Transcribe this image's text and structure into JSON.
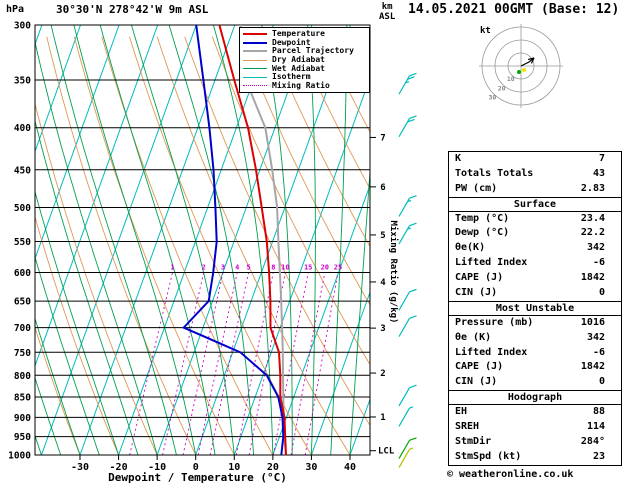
{
  "header": {
    "pressure_unit": "hPa",
    "station": "30°30'N 278°42'W 9m ASL",
    "datetime": "14.05.2021 00GMT (Base: 12)",
    "alt_unit_line1": "km",
    "alt_unit_line2": "ASL",
    "copyright": "© weatheronline.co.uk"
  },
  "legend": [
    {
      "label": "Temperature",
      "color": "#dd0000",
      "style": "thick"
    },
    {
      "label": "Dewpoint",
      "color": "#0000cc",
      "style": "thick"
    },
    {
      "label": "Parcel Trajectory",
      "color": "#a6a6a6",
      "style": "thick"
    },
    {
      "label": "Dry Adiabat",
      "color": "#dd9955",
      "style": "thin"
    },
    {
      "label": "Wet Adiabat",
      "color": "#00a050",
      "style": "thin"
    },
    {
      "label": "Isotherm",
      "color": "#00bbbb",
      "style": "thin"
    },
    {
      "label": "Mixing Ratio",
      "color": "#cc00cc",
      "style": "dotted"
    }
  ],
  "axes": {
    "xlabel": "Dewpoint / Temperature (°C)",
    "mixing_ratio_label": "Mixing Ratio (g/kg)",
    "lcl_label": "LCL",
    "lcl_pressure": 988,
    "pressure_levels": [
      300,
      350,
      400,
      450,
      500,
      550,
      600,
      650,
      700,
      750,
      800,
      850,
      900,
      950,
      1000
    ],
    "temp_ticks": [
      -30,
      -20,
      -10,
      0,
      10,
      20,
      30,
      40
    ],
    "mixing_ratio_values": [
      1,
      2,
      3,
      4,
      5,
      8,
      10,
      15,
      20,
      25
    ],
    "km_levels": [
      {
        "km": 7,
        "p": 411
      },
      {
        "km": 6,
        "p": 472
      },
      {
        "km": 5,
        "p": 540
      },
      {
        "km": 4,
        "p": 616
      },
      {
        "km": 3,
        "p": 701
      },
      {
        "km": 2,
        "p": 795
      },
      {
        "km": 1,
        "p": 899
      }
    ]
  },
  "chart_data": {
    "type": "skewt_log_p_sounding",
    "title": "30°30'N 278°42'W 9m ASL",
    "valid": "14.05.2021 00GMT (Base: 12)",
    "pressure_range_hpa": [
      300,
      1000
    ],
    "temp_axis_range_c": [
      -30,
      40
    ],
    "isotherm_step_c": 10,
    "pressure_hpa": [
      1000,
      950,
      900,
      850,
      800,
      750,
      700,
      650,
      600,
      550,
      500,
      450,
      400,
      350,
      300
    ],
    "temperature_c": [
      23.4,
      21.5,
      19.5,
      16.5,
      14.5,
      12,
      7.5,
      5,
      2,
      -1.5,
      -6,
      -11,
      -17,
      -25,
      -34
    ],
    "dewpoint_c": [
      22.2,
      21,
      19,
      16,
      11,
      2,
      -15,
      -11,
      -12.5,
      -14.5,
      -18,
      -22,
      -27,
      -33,
      -40
    ],
    "parcel_c": [
      23.4,
      21.2,
      19.3,
      17.3,
      15.2,
      13,
      10.5,
      7.8,
      4.8,
      1.5,
      -2,
      -6.8,
      -12.5,
      -22,
      -28.5
    ],
    "wind_barbs": [
      {
        "p": 355,
        "kt": 25,
        "color": "#00bbbb"
      },
      {
        "p": 400,
        "kt": 20,
        "color": "#00bbbb"
      },
      {
        "p": 500,
        "kt": 15,
        "color": "#00bbbb"
      },
      {
        "p": 540,
        "kt": 15,
        "color": "#00bbbb"
      },
      {
        "p": 650,
        "kt": 10,
        "color": "#00bbbb"
      },
      {
        "p": 700,
        "kt": 10,
        "color": "#00bbbb"
      },
      {
        "p": 850,
        "kt": 10,
        "color": "#00bbbb"
      },
      {
        "p": 900,
        "kt": 5,
        "color": "#00bbbb"
      },
      {
        "p": 985,
        "kt": 10,
        "color": "#00aa00"
      },
      {
        "p": 1010,
        "kt": 5,
        "color": "#bbbb00"
      }
    ],
    "colors": {
      "temperature": "#dd0000",
      "dewpoint": "#0000cc",
      "parcel": "#a6a6a6",
      "dry_adiabat": "#dd9955",
      "wet_adiabat": "#00a050",
      "isotherm": "#00bbbb",
      "mixing_ratio": "#cc00cc",
      "grid": "#000000"
    }
  },
  "hodograph": {
    "unit": "kt",
    "ring_labels": [
      10,
      20,
      30
    ],
    "trace": [
      [
        0,
        0
      ],
      [
        4,
        -2
      ],
      [
        8,
        -4
      ],
      [
        13,
        -8
      ]
    ],
    "marker_colors": {
      "storm": "#e8e800",
      "mean": "#00aa00"
    }
  },
  "stats": {
    "top": [
      {
        "label": "K",
        "value": "7"
      },
      {
        "label": "Totals Totals",
        "value": "43"
      },
      {
        "label": "PW (cm)",
        "value": "2.83"
      }
    ],
    "sections": [
      {
        "title": "Surface",
        "rows": [
          {
            "label": "Temp (°C)",
            "value": "23.4"
          },
          {
            "label": "Dewp (°C)",
            "value": "22.2"
          },
          {
            "label": "θe(K)",
            "value": "342"
          },
          {
            "label": "Lifted Index",
            "value": "-6"
          },
          {
            "label": "CAPE (J)",
            "value": "1842"
          },
          {
            "label": "CIN (J)",
            "value": "0"
          }
        ]
      },
      {
        "title": "Most Unstable",
        "rows": [
          {
            "label": "Pressure (mb)",
            "value": "1016"
          },
          {
            "label": "θe (K)",
            "value": "342"
          },
          {
            "label": "Lifted Index",
            "value": "-6"
          },
          {
            "label": "CAPE (J)",
            "value": "1842"
          },
          {
            "label": "CIN (J)",
            "value": "0"
          }
        ]
      },
      {
        "title": "Hodograph",
        "rows": [
          {
            "label": "EH",
            "value": "88"
          },
          {
            "label": "SREH",
            "value": "114"
          },
          {
            "label": "StmDir",
            "value": "284°"
          },
          {
            "label": "StmSpd (kt)",
            "value": "23"
          }
        ]
      }
    ]
  }
}
